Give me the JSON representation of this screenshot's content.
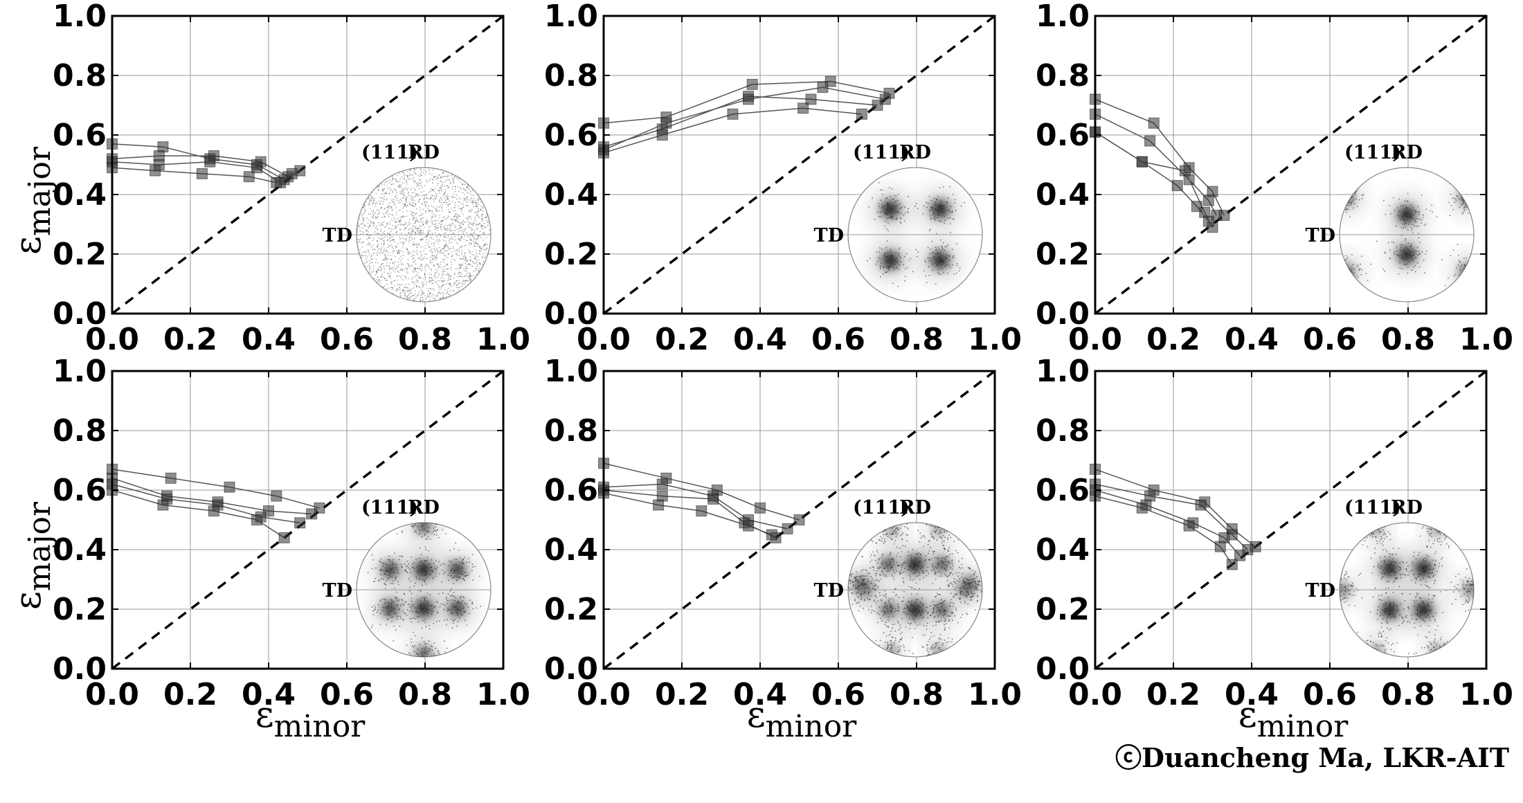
{
  "figure": {
    "copyright": "ⓒDuancheng Ma, LKR-AIT",
    "xlabel_symbol": "ε",
    "xlabel_sub": "minor",
    "ylabel_symbol": "ε",
    "ylabel_sub": "major",
    "pole_figure_plane": "(111)",
    "pole_figure_rd": "RD",
    "pole_figure_td": "TD"
  },
  "chart_data": [
    {
      "type": "scatter",
      "panel": "top-left",
      "xlim": [
        0,
        1
      ],
      "ylim": [
        0,
        1
      ],
      "xticks": [
        "0.0",
        "0.2",
        "0.4",
        "0.6",
        "0.8",
        "1.0"
      ],
      "yticks": [
        "0.0",
        "0.2",
        "0.4",
        "0.6",
        "0.8",
        "1.0"
      ],
      "grid": true,
      "reference_line": "y = x (dashed)",
      "texture": "random",
      "series": [
        {
          "x": [
            0.0,
            0.13,
            0.25,
            0.37,
            0.44,
            0.48
          ],
          "y": [
            0.57,
            0.56,
            0.52,
            0.5,
            0.45,
            0.48
          ]
        },
        {
          "x": [
            0.0,
            0.12,
            0.26,
            0.38,
            0.45
          ],
          "y": [
            0.52,
            0.53,
            0.53,
            0.51,
            0.46
          ]
        },
        {
          "x": [
            0.0,
            0.12,
            0.25,
            0.37,
            0.43
          ],
          "y": [
            0.51,
            0.5,
            0.51,
            0.49,
            0.44
          ]
        },
        {
          "x": [
            0.0,
            0.11,
            0.23,
            0.35,
            0.42,
            0.46
          ],
          "y": [
            0.49,
            0.48,
            0.47,
            0.46,
            0.44,
            0.47
          ]
        }
      ]
    },
    {
      "type": "scatter",
      "panel": "top-middle",
      "xlim": [
        0,
        1
      ],
      "ylim": [
        0,
        1
      ],
      "xticks": [
        "0.0",
        "0.2",
        "0.4",
        "0.6",
        "0.8",
        "1.0"
      ],
      "yticks": [
        "0.0",
        "0.2",
        "0.4",
        "0.6",
        "0.8",
        "1.0"
      ],
      "grid": true,
      "reference_line": "y = x (dashed)",
      "texture": "cube",
      "series": [
        {
          "x": [
            0.0,
            0.16,
            0.38,
            0.58,
            0.73
          ],
          "y": [
            0.64,
            0.66,
            0.77,
            0.78,
            0.74
          ]
        },
        {
          "x": [
            0.0,
            0.15,
            0.37,
            0.53,
            0.7
          ],
          "y": [
            0.56,
            0.62,
            0.73,
            0.72,
            0.7
          ]
        },
        {
          "x": [
            0.0,
            0.15,
            0.33,
            0.51,
            0.66
          ],
          "y": [
            0.54,
            0.6,
            0.67,
            0.69,
            0.67
          ]
        },
        {
          "x": [
            0.0,
            0.16,
            0.37,
            0.56,
            0.72
          ],
          "y": [
            0.55,
            0.64,
            0.72,
            0.76,
            0.72
          ]
        }
      ]
    },
    {
      "type": "scatter",
      "panel": "top-right",
      "xlim": [
        0,
        1
      ],
      "ylim": [
        0,
        1
      ],
      "xticks": [
        "0.0",
        "0.2",
        "0.4",
        "0.6",
        "0.8",
        "1.0"
      ],
      "yticks": [
        "0.0",
        "0.2",
        "0.4",
        "0.6",
        "0.8",
        "1.0"
      ],
      "grid": true,
      "reference_line": "y = x (dashed)",
      "texture": "goss",
      "series": [
        {
          "x": [
            0.0,
            0.15,
            0.24,
            0.3,
            0.33
          ],
          "y": [
            0.72,
            0.64,
            0.49,
            0.41,
            0.33
          ]
        },
        {
          "x": [
            0.0,
            0.14,
            0.24,
            0.29,
            0.31
          ],
          "y": [
            0.67,
            0.58,
            0.45,
            0.38,
            0.33
          ]
        },
        {
          "x": [
            0.0,
            0.12,
            0.23,
            0.28,
            0.3
          ],
          "y": [
            0.61,
            0.51,
            0.48,
            0.34,
            0.29
          ]
        },
        {
          "x": [
            0.0,
            0.12,
            0.21,
            0.26,
            0.29
          ],
          "y": [
            0.61,
            0.51,
            0.43,
            0.36,
            0.31
          ]
        }
      ]
    },
    {
      "type": "scatter",
      "panel": "bottom-left",
      "xlim": [
        0,
        1
      ],
      "ylim": [
        0,
        1
      ],
      "xticks": [
        "0.0",
        "0.2",
        "0.4",
        "0.6",
        "0.8",
        "1.0"
      ],
      "yticks": [
        "0.0",
        "0.2",
        "0.4",
        "0.6",
        "0.8",
        "1.0"
      ],
      "grid": true,
      "reference_line": "y = x (dashed)",
      "texture": "copper",
      "series": [
        {
          "x": [
            0.0,
            0.15,
            0.3,
            0.42,
            0.53
          ],
          "y": [
            0.67,
            0.64,
            0.61,
            0.58,
            0.54
          ]
        },
        {
          "x": [
            0.0,
            0.14,
            0.27,
            0.4,
            0.51
          ],
          "y": [
            0.64,
            0.58,
            0.56,
            0.53,
            0.52
          ]
        },
        {
          "x": [
            0.0,
            0.14,
            0.27,
            0.38,
            0.48
          ],
          "y": [
            0.62,
            0.57,
            0.55,
            0.51,
            0.49
          ]
        },
        {
          "x": [
            0.0,
            0.13,
            0.26,
            0.37,
            0.44
          ],
          "y": [
            0.6,
            0.55,
            0.53,
            0.5,
            0.44
          ]
        }
      ]
    },
    {
      "type": "scatter",
      "panel": "bottom-middle",
      "xlim": [
        0,
        1
      ],
      "ylim": [
        0,
        1
      ],
      "xticks": [
        "0.0",
        "0.2",
        "0.4",
        "0.6",
        "0.8",
        "1.0"
      ],
      "yticks": [
        "0.0",
        "0.2",
        "0.4",
        "0.6",
        "0.8",
        "1.0"
      ],
      "grid": true,
      "reference_line": "y = x (dashed)",
      "texture": "brass",
      "series": [
        {
          "x": [
            0.0,
            0.16,
            0.29,
            0.4,
            0.5
          ],
          "y": [
            0.69,
            0.64,
            0.6,
            0.54,
            0.5
          ]
        },
        {
          "x": [
            0.0,
            0.15,
            0.28,
            0.37,
            0.47
          ],
          "y": [
            0.61,
            0.62,
            0.58,
            0.5,
            0.47
          ]
        },
        {
          "x": [
            0.0,
            0.15,
            0.28,
            0.36,
            0.44
          ],
          "y": [
            0.6,
            0.58,
            0.57,
            0.49,
            0.44
          ]
        },
        {
          "x": [
            0.0,
            0.14,
            0.25,
            0.37,
            0.43
          ],
          "y": [
            0.59,
            0.55,
            0.53,
            0.48,
            0.45
          ]
        }
      ]
    },
    {
      "type": "scatter",
      "panel": "bottom-right",
      "xlim": [
        0,
        1
      ],
      "ylim": [
        0,
        1
      ],
      "xticks": [
        "0.0",
        "0.2",
        "0.4",
        "0.6",
        "0.8",
        "1.0"
      ],
      "yticks": [
        "0.0",
        "0.2",
        "0.4",
        "0.6",
        "0.8",
        "1.0"
      ],
      "grid": true,
      "reference_line": "y = x (dashed)",
      "texture": "s-texture",
      "series": [
        {
          "x": [
            0.0,
            0.15,
            0.28,
            0.35,
            0.41
          ],
          "y": [
            0.67,
            0.6,
            0.56,
            0.47,
            0.41
          ]
        },
        {
          "x": [
            0.0,
            0.14,
            0.27,
            0.35,
            0.39
          ],
          "y": [
            0.62,
            0.58,
            0.55,
            0.45,
            0.4
          ]
        },
        {
          "x": [
            0.0,
            0.13,
            0.25,
            0.33,
            0.37
          ],
          "y": [
            0.6,
            0.55,
            0.49,
            0.44,
            0.38
          ]
        },
        {
          "x": [
            0.0,
            0.12,
            0.24,
            0.32,
            0.35
          ],
          "y": [
            0.58,
            0.54,
            0.48,
            0.41,
            0.35
          ]
        }
      ]
    }
  ]
}
